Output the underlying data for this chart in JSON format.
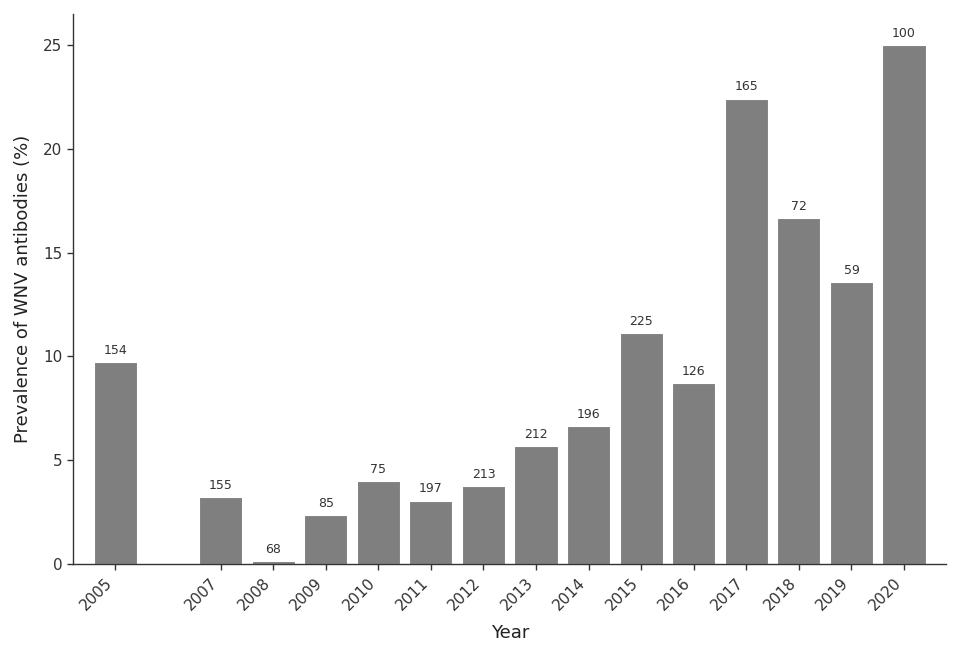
{
  "years": [
    2005,
    2007,
    2008,
    2009,
    2010,
    2011,
    2012,
    2013,
    2014,
    2015,
    2016,
    2017,
    2018,
    2019,
    2020
  ],
  "values": [
    9.74,
    3.23,
    0.15,
    2.35,
    4.0,
    3.05,
    3.76,
    5.66,
    6.63,
    11.11,
    8.73,
    22.42,
    16.67,
    13.56,
    25.0
  ],
  "sample_sizes": [
    154,
    155,
    68,
    85,
    75,
    197,
    213,
    212,
    196,
    225,
    126,
    165,
    72,
    59,
    100
  ],
  "bar_color": "#7f7f7f",
  "xlabel": "Year",
  "ylabel": "Prevalence of WNV antibodies (%)",
  "ylim": [
    0,
    26.5
  ],
  "yticks": [
    0,
    5,
    10,
    15,
    20,
    25
  ],
  "annotation_fontsize": 9,
  "axis_label_fontsize": 13,
  "tick_label_fontsize": 11,
  "background_color": "#ffffff",
  "bar_width": 0.82,
  "xlim_left": 2004.2,
  "xlim_right": 2020.8
}
